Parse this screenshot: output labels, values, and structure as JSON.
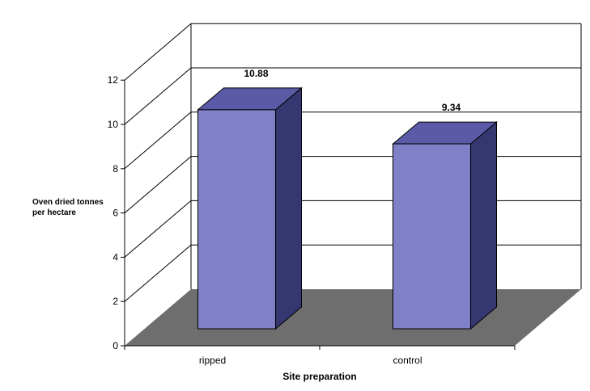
{
  "chart_data": {
    "type": "bar",
    "categories": [
      "ripped",
      "control"
    ],
    "values": [
      10.88,
      9.34
    ],
    "data_labels": [
      "10.88",
      "9.34"
    ],
    "xlabel": "Site preparation",
    "ylabel_lines": [
      "Oven dried tonnes",
      "per hectare"
    ],
    "ylim": [
      0,
      12
    ],
    "yticks": [
      0,
      2,
      4,
      6,
      8,
      10,
      12
    ],
    "grid": true,
    "style": "3d-column",
    "colors": {
      "bar_front": "#8080c8",
      "bar_side": "#363670",
      "bar_top": "#5a5aa6",
      "floor": "#6e6e6e",
      "grid": "#000000"
    }
  }
}
